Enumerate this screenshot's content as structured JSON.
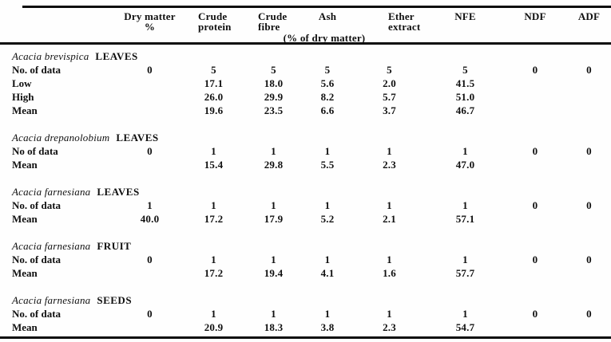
{
  "table": {
    "header_columns": [
      {
        "line1": "Dry matter",
        "line2": "%"
      },
      {
        "line1": "Crude",
        "line2": "protein"
      },
      {
        "line1": "Crude",
        "line2": "fibre"
      },
      {
        "line1": "Ash",
        "line2": ""
      },
      {
        "line1": "Ether",
        "line2": "extract"
      },
      {
        "line1": "NFE",
        "line2": ""
      },
      {
        "line1": "NDF",
        "line2": ""
      },
      {
        "line1": "ADF",
        "line2": ""
      }
    ],
    "subheader": "(% of dry matter)",
    "sections": [
      {
        "species": "Acacia brevispica",
        "part": "LEAVES",
        "rows": [
          {
            "label": "No. of data",
            "values": [
              "0",
              "5",
              "5",
              "5",
              "5",
              "5",
              "0",
              "0"
            ]
          },
          {
            "label": "Low",
            "values": [
              "",
              "17.1",
              "18.0",
              "5.6",
              "2.0",
              "41.5",
              "",
              ""
            ]
          },
          {
            "label": "High",
            "values": [
              "",
              "26.0",
              "29.9",
              "8.2",
              "5.7",
              "51.0",
              "",
              ""
            ]
          },
          {
            "label": "Mean",
            "values": [
              "",
              "19.6",
              "23.5",
              "6.6",
              "3.7",
              "46.7",
              "",
              ""
            ]
          }
        ]
      },
      {
        "species": "Acacia drepanolobium",
        "part": "LEAVES",
        "rows": [
          {
            "label": "No of data",
            "values": [
              "0",
              "1",
              "1",
              "1",
              "1",
              "1",
              "0",
              "0"
            ]
          },
          {
            "label": "Mean",
            "values": [
              "",
              "15.4",
              "29.8",
              "5.5",
              "2.3",
              "47.0",
              "",
              ""
            ]
          }
        ]
      },
      {
        "species": "Acacia farnesiana",
        "part": "LEAVES",
        "rows": [
          {
            "label": "No. of data",
            "values": [
              "1",
              "1",
              "1",
              "1",
              "1",
              "1",
              "0",
              "0"
            ]
          },
          {
            "label": "Mean",
            "values": [
              "40.0",
              "17.2",
              "17.9",
              "5.2",
              "2.1",
              "57.1",
              "",
              ""
            ]
          }
        ]
      },
      {
        "species": "Acacia farnesiana",
        "part": "FRUIT",
        "rows": [
          {
            "label": "No. of data",
            "values": [
              "0",
              "1",
              "1",
              "1",
              "1",
              "1",
              "0",
              "0"
            ]
          },
          {
            "label": "Mean",
            "values": [
              "",
              "17.2",
              "19.4",
              "4.1",
              "1.6",
              "57.7",
              "",
              ""
            ]
          }
        ]
      },
      {
        "species": "Acacia farnesiana",
        "part": "SEEDS",
        "rows": [
          {
            "label": "No. of data",
            "values": [
              "0",
              "1",
              "1",
              "1",
              "1",
              "1",
              "0",
              "0"
            ]
          },
          {
            "label": "Mean",
            "values": [
              "",
              "20.9",
              "18.3",
              "3.8",
              "2.3",
              "54.7",
              "",
              ""
            ]
          }
        ]
      }
    ]
  }
}
